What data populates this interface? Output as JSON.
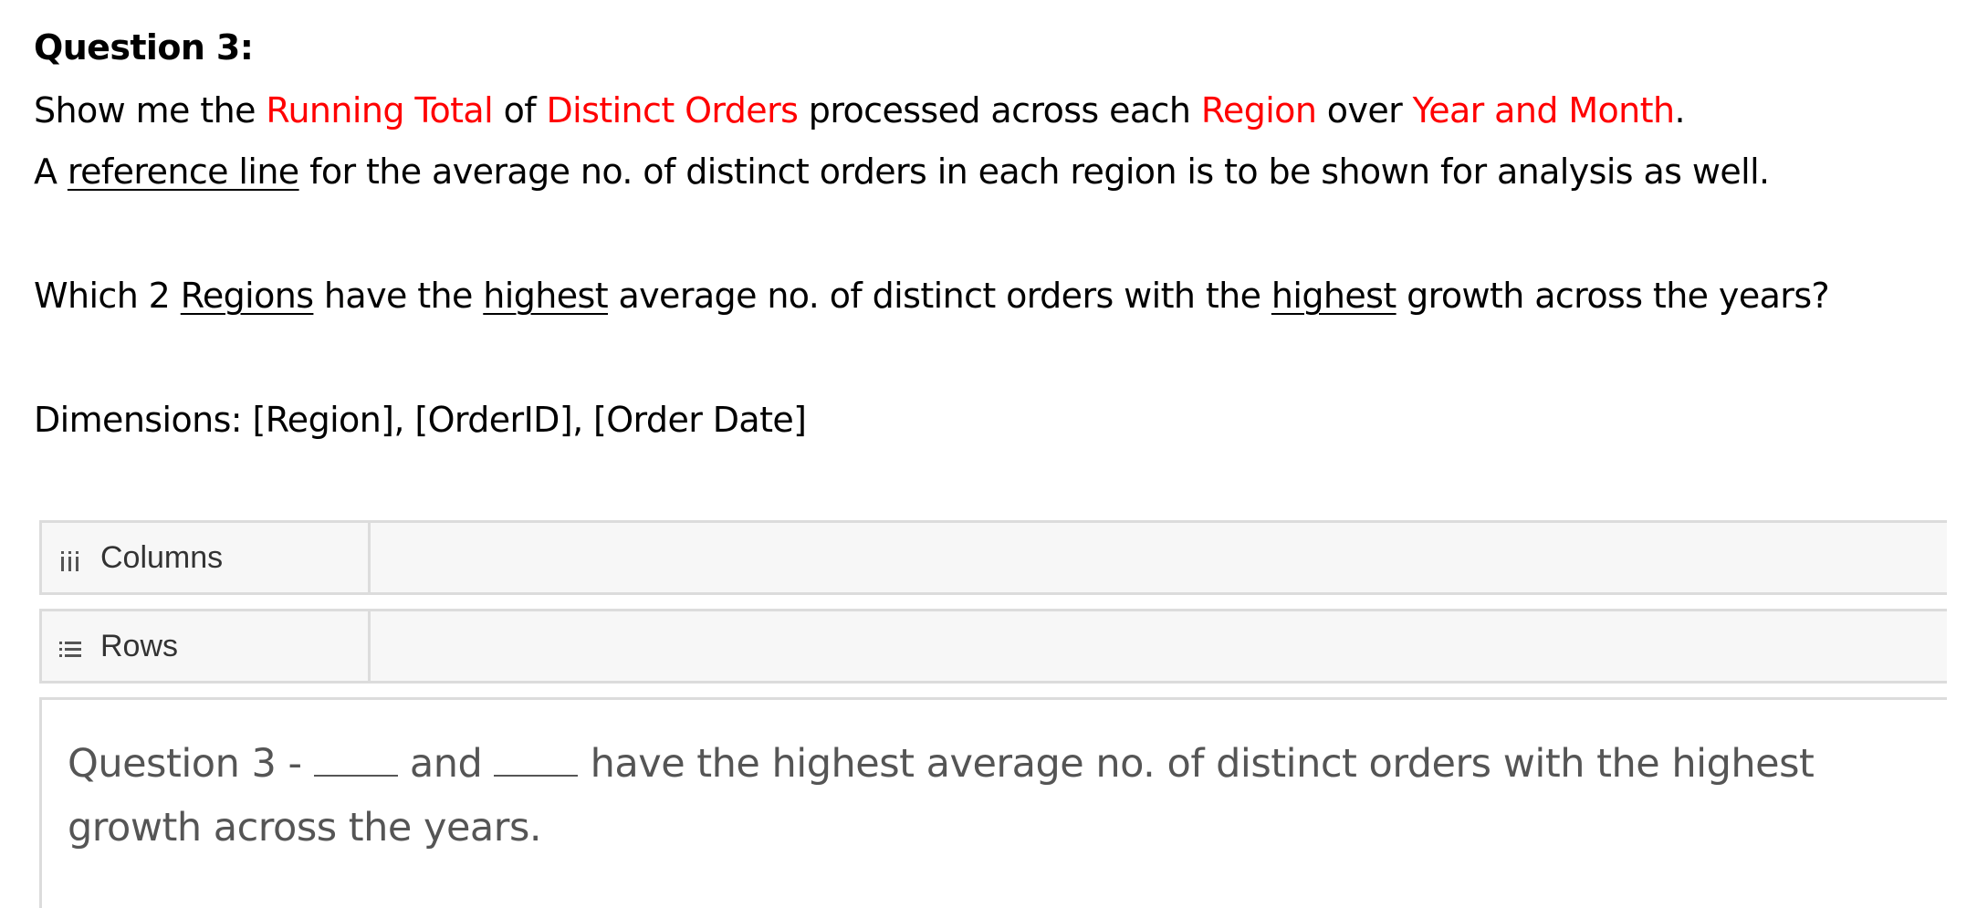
{
  "question": {
    "heading": "Question 3:",
    "line1": {
      "p1": "Show me the ",
      "r1": "Running Total",
      "p2": " of ",
      "r2": "Distinct Orders",
      "p3": " processed across each ",
      "r3": "Region",
      "p4": " over ",
      "r4": "Year and Month",
      "p5": "."
    },
    "line2": {
      "p1": "A ",
      "u1": "reference line",
      "p2": " for the average no. of distinct orders in each region is to be shown for analysis as well."
    },
    "line3": {
      "p1": "Which 2 ",
      "u1": "Regions",
      "p2": " have the ",
      "u2": "highest",
      "p3": " average no. of distinct orders with the ",
      "u3": "highest",
      "p4": " growth across the years?"
    },
    "dimensions": "Dimensions: [Region], [OrderID], [Order Date]",
    "highlight_color": "#ff0000"
  },
  "shelves": {
    "columns": {
      "label": "Columns",
      "icon": "columns-icon"
    },
    "rows": {
      "label": "Rows",
      "icon": "rows-icon"
    }
  },
  "answer": {
    "p1": "Question 3 - ",
    "p2": " and ",
    "p3": " have the highest average no. of distinct orders with the highest",
    "p4": "growth across the years."
  }
}
